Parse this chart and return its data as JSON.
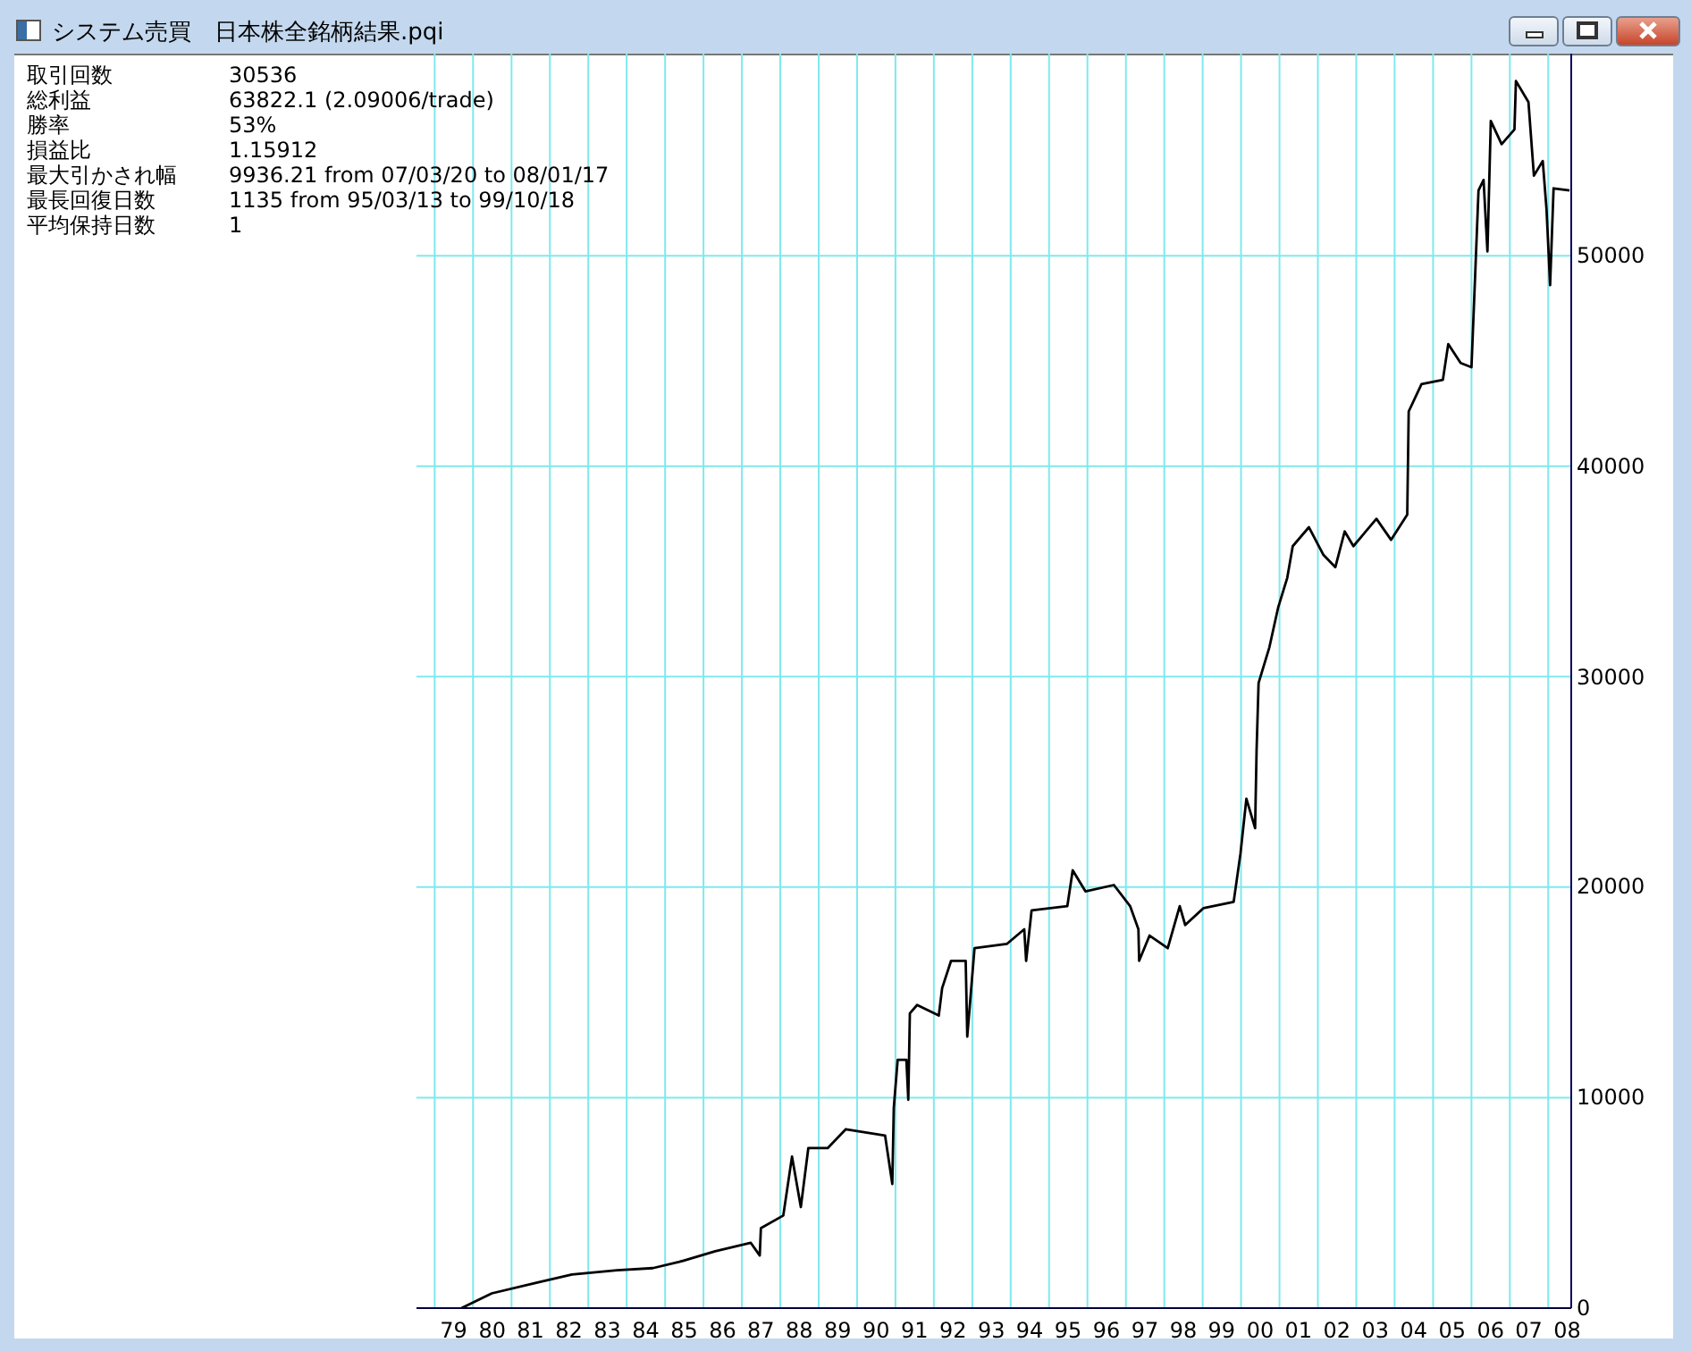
{
  "chart_data": {
    "type": "line",
    "title": "システム売買　日本株全銘柄結果.pqi",
    "annotations": [
      "取引回数",
      "30536",
      "総利益",
      "63822.1 (2.09006/trade)",
      "勝率",
      "53%",
      "損益比",
      "1.15912",
      "最大引かされ幅",
      "9936.21 from 07/03/20 to 08/01/17",
      "最長回復日数",
      "1135 from 95/03/13 to 99/10/18",
      "平均保持日数",
      "1"
    ],
    "x": [
      "1979-09-13",
      "1980-06-27",
      "1981-08-25",
      "1982-07-30",
      "1983-10-01",
      "1984-09-06",
      "1985-05-18",
      "1986-04-22",
      "1987-03-27",
      "1987-06-20",
      "1987-07-01",
      "1988-01-30",
      "1988-04-22",
      "1988-07-15",
      "1988-09-24",
      "1989-03-27",
      "1989-09-16",
      "1990-09-24",
      "1990-12-02",
      "1990-12-16",
      "1991-01-22",
      "1991-04-15",
      "1991-05-03",
      "1991-05-18",
      "1991-07-26",
      "1992-02-17",
      "1992-03-20",
      "1992-06-13",
      "1992-10-30",
      "1992-11-14",
      "1993-01-22",
      "1993-11-25",
      "1994-05-10",
      "1994-05-28",
      "1994-07-19",
      "1995-06-24",
      "1995-08-14",
      "1995-12-13",
      "1996-09-09",
      "1997-02-10",
      "1997-04-30",
      "1997-05-07",
      "1997-08-14",
      "1998-02-03",
      "1998-05-28",
      "1998-07-19",
      "1999-01-08",
      "1999-10-23",
      "1999-12-27",
      "2000-02-21",
      "2000-05-14",
      "2000-05-28",
      "2000-06-16",
      "2000-09-27",
      "2000-12-20",
      "2001-03-16",
      "2001-05-07",
      "2001-10-08",
      "2002-02-21",
      "2002-06-16",
      "2002-09-13",
      "2002-12-05",
      "2003-07-12",
      "2003-11-28",
      "2004-04-30",
      "2004-05-14",
      "2004-09-13",
      "2005-04-04",
      "2005-05-25",
      "2005-09-20",
      "2006-01-01",
      "2006-02-03",
      "2006-03-09",
      "2006-04-26",
      "2006-06-02",
      "2006-07-04",
      "2006-10-15",
      "2007-02-14",
      "2007-02-28",
      "2007-06-27",
      "2007-08-18",
      "2007-11-10",
      "2007-12-16",
      "2008-01-19",
      "2008-02-21",
      "2008-07-22"
    ],
    "series": [
      {
        "color": "#000000",
        "values": [
          0,
          700,
          1200,
          1600,
          1800,
          1900,
          2200,
          2700,
          3100,
          2500,
          3800,
          4400,
          7200,
          4800,
          7600,
          7600,
          8500,
          8200,
          5900,
          9500,
          11800,
          11800,
          9900,
          14000,
          14400,
          13900,
          15200,
          16500,
          16500,
          12900,
          17100,
          17300,
          18000,
          16500,
          18900,
          19100,
          20800,
          19800,
          20100,
          19100,
          18000,
          16500,
          17700,
          17100,
          19100,
          18200,
          19000,
          19300,
          21600,
          24200,
          22800,
          26500,
          29700,
          31400,
          33300,
          34700,
          36200,
          37100,
          35800,
          35200,
          36900,
          36200,
          37500,
          36500,
          37700,
          42600,
          43900,
          44100,
          45800,
          44900,
          44700,
          48800,
          53100,
          53600,
          50200,
          56400,
          55300,
          56000,
          58300,
          57300,
          53800,
          54500,
          52200,
          48600,
          53200,
          53100
        ]
      }
    ],
    "xlim": [
      "1978-07-12",
      "2008-08-07"
    ],
    "ylim": [
      0,
      59600
    ],
    "xticks": [
      {
        "value": "1979",
        "label": null
      },
      {
        "value": "1979-07",
        "label": "79"
      },
      {
        "value": "1980",
        "label": null
      },
      {
        "value": "1980-07",
        "label": "80"
      },
      {
        "value": "1981",
        "label": null
      },
      {
        "value": "1981-07",
        "label": "81"
      },
      {
        "value": "1982",
        "label": null
      },
      {
        "value": "1982-07",
        "label": "82"
      },
      {
        "value": "1983",
        "label": null
      },
      {
        "value": "1983-07",
        "label": "83"
      },
      {
        "value": "1984",
        "label": null
      },
      {
        "value": "1984-07",
        "label": "84"
      },
      {
        "value": "1985",
        "label": null
      },
      {
        "value": "1985-07",
        "label": "85"
      },
      {
        "value": "1986",
        "label": null
      },
      {
        "value": "1986-07",
        "label": "86"
      },
      {
        "value": "1987",
        "label": null
      },
      {
        "value": "1987-07",
        "label": "87"
      },
      {
        "value": "1988",
        "label": null
      },
      {
        "value": "1988-07",
        "label": "88"
      },
      {
        "value": "1989",
        "label": null
      },
      {
        "value": "1989-07",
        "label": "89"
      },
      {
        "value": "1990",
        "label": null
      },
      {
        "value": "1990-07",
        "label": "90"
      },
      {
        "value": "1991",
        "label": null
      },
      {
        "value": "1991-07",
        "label": "91"
      },
      {
        "value": "1992",
        "label": null
      },
      {
        "value": "1992-07",
        "label": "92"
      },
      {
        "value": "1993",
        "label": null
      },
      {
        "value": "1993-07",
        "label": "93"
      },
      {
        "value": "1994",
        "label": null
      },
      {
        "value": "1994-07",
        "label": "94"
      },
      {
        "value": "1995",
        "label": null
      },
      {
        "value": "1995-07",
        "label": "95"
      },
      {
        "value": "1996",
        "label": null
      },
      {
        "value": "1996-07",
        "label": "96"
      },
      {
        "value": "1997",
        "label": null
      },
      {
        "value": "1997-07",
        "label": "97"
      },
      {
        "value": "1998",
        "label": null
      },
      {
        "value": "1998-07",
        "label": "98"
      },
      {
        "value": "1999",
        "label": null
      },
      {
        "value": "1999-07",
        "label": "99"
      },
      {
        "value": "2000",
        "label": null
      },
      {
        "value": "2000-07",
        "label": "00"
      },
      {
        "value": "2001",
        "label": null
      },
      {
        "value": "2001-07",
        "label": "01"
      },
      {
        "value": "2002",
        "label": null
      },
      {
        "value": "2002-07",
        "label": "02"
      },
      {
        "value": "2003",
        "label": null
      },
      {
        "value": "2003-07",
        "label": "03"
      },
      {
        "value": "2004",
        "label": null
      },
      {
        "value": "2004-07",
        "label": "04"
      },
      {
        "value": "2005",
        "label": null
      },
      {
        "value": "2005-07",
        "label": "05"
      },
      {
        "value": "2006",
        "label": null
      },
      {
        "value": "2006-07",
        "label": "06"
      },
      {
        "value": "2007",
        "label": null
      },
      {
        "value": "2007-07",
        "label": "07"
      },
      {
        "value": "2008",
        "label": null
      },
      {
        "value": "2008-07",
        "label": "08"
      }
    ],
    "yticks": [
      0,
      10000,
      20000,
      30000,
      40000,
      50000
    ],
    "grid": true,
    "marker": "none",
    "line_style": "solid",
    "legend": false
  }
}
